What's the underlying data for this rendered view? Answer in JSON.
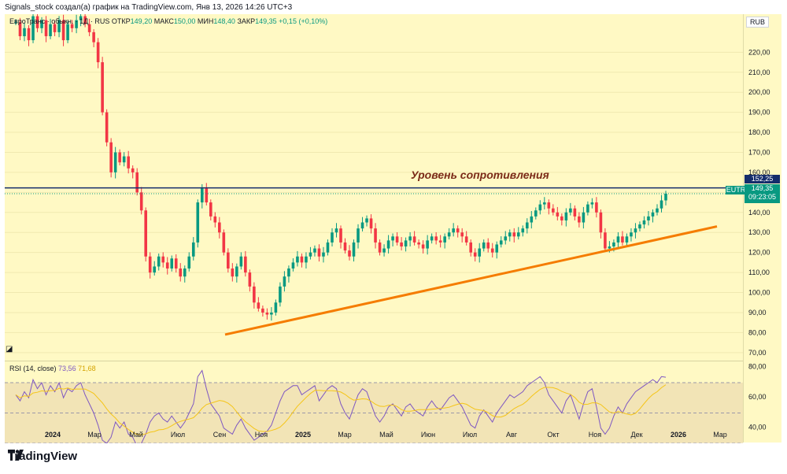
{
  "header": {
    "text": "Signals_stock создал(а) график на TradingView.com, Янв 13, 2026 14:26 UTC+3"
  },
  "legend": {
    "symbol": "ЕвроТранс · обыкн. · 1Д · RUS",
    "o_label": "ОТКР",
    "o_value": "149,20",
    "h_label": "МАКС",
    "h_value": "150,00",
    "l_label": "МИН",
    "l_value": "148,40",
    "c_label": "ЗАКР",
    "c_value": "149,35",
    "change": "+0,15 (+0,10%)"
  },
  "currency": "RUB",
  "badges": {
    "resistance_price": "152,25",
    "ticker": "EUTR",
    "last_price": "149,35",
    "countdown": "09:23:05"
  },
  "annotation": "Уровень сопротивления",
  "rsi_legend": {
    "label": "RSI (14, close)",
    "rsi_value": "73,56",
    "ma_value": "71,68"
  },
  "brand": {
    "name": "TradingView"
  },
  "colors": {
    "up": "#089981",
    "down": "#f23645",
    "resistance_line": "#142c6b",
    "trend_line": "#f57c00",
    "rsi_line": "#7e57c2",
    "rsi_ma": "#f5c518",
    "background": "#fff9c4"
  },
  "chart_data": [
    {
      "type": "candlestick",
      "title": "",
      "x_ticks": [
        "2024",
        "Мар",
        "Май",
        "Июл",
        "Сен",
        "Ноя",
        "2025",
        "Мар",
        "Май",
        "Июн",
        "Июл",
        "Авг",
        "Окт",
        "Ноя",
        "Дек",
        "2026",
        "Мар"
      ],
      "y_ticks": [
        "70,00",
        "80,00",
        "90,00",
        "100,00",
        "110,00",
        "120,00",
        "130,00",
        "140,00",
        "150,00",
        "160,00",
        "170,00",
        "180,00",
        "190,00",
        "200,00",
        "210,00",
        "220,00"
      ],
      "ylim": [
        66,
        239
      ],
      "last": {
        "open": 149.2,
        "high": 150.0,
        "low": 148.4,
        "close": 149.35,
        "change": 0.15,
        "change_pct": 0.1
      },
      "resistance_level": 152.25,
      "trend_line": {
        "from": 79,
        "to": 133
      },
      "price_path": [
        235,
        228,
        232,
        226,
        238,
        232,
        236,
        228,
        234,
        230,
        236,
        226,
        234,
        232,
        236,
        238,
        234,
        230,
        225,
        215,
        190,
        175,
        160,
        170,
        165,
        168,
        162,
        160,
        150,
        141,
        118,
        110,
        113,
        118,
        115,
        112,
        117,
        112,
        108,
        112,
        118,
        125,
        145,
        152,
        145,
        138,
        135,
        130,
        120,
        112,
        108,
        113,
        118,
        110,
        103,
        95,
        92,
        90,
        89,
        90,
        95,
        103,
        108,
        112,
        115,
        118,
        115,
        118,
        120,
        122,
        118,
        120,
        125,
        130,
        132,
        125,
        121,
        118,
        125,
        132,
        135,
        137,
        132,
        125,
        120,
        122,
        126,
        128,
        125,
        123,
        126,
        128,
        125,
        124,
        122,
        126,
        128,
        126,
        125,
        128,
        130,
        132,
        130,
        128,
        125,
        120,
        118,
        122,
        125,
        122,
        120,
        124,
        126,
        128,
        130,
        128,
        130,
        132,
        135,
        138,
        141,
        144,
        145,
        142,
        140,
        138,
        136,
        140,
        142,
        138,
        135,
        140,
        144,
        145,
        140,
        130,
        122,
        123,
        125,
        128,
        125,
        128,
        130,
        132,
        134,
        136,
        138,
        140,
        142,
        146,
        149.35
      ]
    },
    {
      "type": "line",
      "title": "RSI (14, close)",
      "y_ticks": [
        "40,00",
        "60,00",
        "80,00"
      ],
      "ylim": [
        30,
        84
      ],
      "bands": [
        70,
        50,
        30
      ],
      "series": [
        {
          "name": "RSI",
          "last": 73.56,
          "values": [
            62,
            58,
            64,
            60,
            72,
            66,
            70,
            62,
            68,
            64,
            70,
            60,
            66,
            64,
            68,
            70,
            62,
            56,
            50,
            42,
            32,
            30,
            34,
            44,
            40,
            44,
            36,
            34,
            28,
            30,
            36,
            44,
            48,
            50,
            46,
            44,
            48,
            44,
            40,
            44,
            50,
            56,
            74,
            78,
            66,
            56,
            52,
            48,
            40,
            38,
            36,
            42,
            46,
            40,
            36,
            32,
            34,
            36,
            38,
            42,
            50,
            58,
            64,
            66,
            68,
            68,
            62,
            64,
            66,
            68,
            58,
            62,
            66,
            68,
            66,
            56,
            50,
            46,
            54,
            62,
            66,
            64,
            56,
            48,
            44,
            48,
            54,
            56,
            52,
            48,
            54,
            56,
            52,
            50,
            48,
            54,
            58,
            54,
            52,
            56,
            60,
            62,
            58,
            54,
            48,
            42,
            40,
            48,
            52,
            48,
            44,
            50,
            54,
            58,
            62,
            60,
            62,
            64,
            68,
            70,
            72,
            74,
            70,
            62,
            58,
            54,
            50,
            58,
            62,
            54,
            46,
            56,
            64,
            66,
            54,
            40,
            36,
            40,
            48,
            54,
            50,
            56,
            60,
            64,
            66,
            68,
            70,
            72,
            70,
            74,
            73.56
          ]
        },
        {
          "name": "RSI MA",
          "last": 71.68
        }
      ]
    }
  ]
}
